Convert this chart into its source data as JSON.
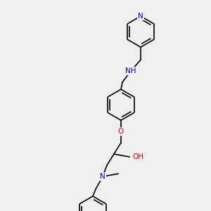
{
  "bg_color": "#efefef",
  "atom_colors": {
    "N": "#0000cd",
    "O": "#ff0000",
    "C": "#000000",
    "H": "#000000"
  },
  "bond_color": "#000000",
  "line_width": 1.2,
  "font_size": 7.5,
  "fig_width": 3.0,
  "fig_height": 3.0,
  "dpi": 100
}
